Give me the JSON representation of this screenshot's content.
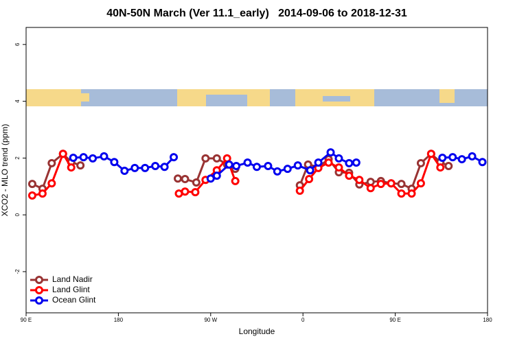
{
  "chart_data": {
    "type": "line",
    "title": "40N-50N March (Ver 11.1_early)   2014-09-06 to 2018-12-31",
    "x_label": "Longitude",
    "y_label": "XCO2 - MLO trend (ppm)",
    "xlim": [
      90,
      540
    ],
    "ylim": [
      -3.45,
      6.6
    ],
    "xticks": [
      {
        "value": 90,
        "label": "90 E"
      },
      180,
      {
        "value": 270,
        "label": "90 W"
      },
      {
        "value": 360,
        "label": "0"
      },
      {
        "value": 450,
        "label": "90 E"
      },
      {
        "value": 540,
        "label": "180"
      }
    ],
    "yticks": [
      -2,
      0,
      2,
      4,
      6
    ],
    "legend": "bottom-left",
    "series": [
      {
        "name": "Land Nadir",
        "color": "#993333",
        "x": [
          96,
          106,
          115,
          126,
          134,
          143,
          null,
          238,
          245,
          256,
          265,
          276,
          286,
          294,
          null,
          357,
          365,
          375,
          385,
          395,
          405,
          415,
          426,
          436,
          446,
          456,
          466,
          475,
          485,
          494,
          502
        ],
        "values": [
          1.09,
          0.92,
          1.82,
          2.15,
          1.86,
          1.74,
          null,
          1.28,
          1.26,
          1.14,
          1.99,
          1.99,
          1.77,
          1.62,
          null,
          1.04,
          1.77,
          1.69,
          1.96,
          1.5,
          1.48,
          1.07,
          1.16,
          1.19,
          1.11,
          1.09,
          0.92,
          1.82,
          2.15,
          1.86,
          1.72
        ]
      },
      {
        "name": "Land Glint",
        "color": "#ff0000",
        "x": [
          96,
          106,
          115,
          126,
          134,
          null,
          239,
          245,
          255,
          265,
          276,
          286,
          294,
          null,
          357,
          366,
          375,
          385,
          395,
          405,
          415,
          426,
          436,
          446,
          456,
          466,
          475,
          485,
          494
        ],
        "values": [
          0.68,
          0.75,
          1.11,
          2.15,
          1.67,
          null,
          0.75,
          0.82,
          0.8,
          1.23,
          1.57,
          1.99,
          1.19,
          null,
          0.85,
          1.26,
          1.65,
          1.84,
          1.67,
          1.38,
          1.23,
          0.94,
          1.09,
          1.11,
          0.75,
          0.75,
          1.11,
          2.15,
          1.67
        ]
      },
      {
        "name": "Ocean Glint",
        "color": "#0000ee",
        "x": [
          136,
          146,
          155,
          166,
          176,
          186,
          196,
          206,
          216,
          225,
          234,
          null,
          270,
          276,
          288,
          295,
          306,
          315,
          326,
          335,
          345,
          355,
          367,
          375,
          387,
          395,
          405,
          412,
          null,
          496,
          506,
          515,
          525,
          535
        ],
        "values": [
          2.01,
          2.03,
          1.99,
          2.06,
          1.86,
          1.55,
          1.65,
          1.65,
          1.72,
          1.69,
          2.03,
          null,
          1.28,
          1.38,
          1.77,
          1.72,
          1.84,
          1.69,
          1.72,
          1.53,
          1.62,
          1.74,
          1.57,
          1.84,
          2.2,
          1.99,
          1.82,
          1.84,
          null,
          2.01,
          2.03,
          1.96,
          2.06,
          1.86
        ]
      }
    ]
  }
}
